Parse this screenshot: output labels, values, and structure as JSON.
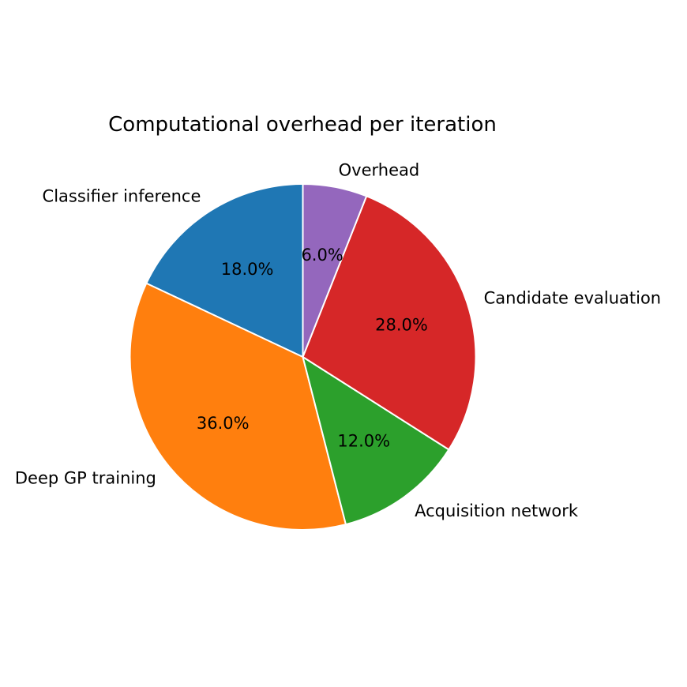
{
  "chart_data": {
    "type": "pie",
    "title": "Computational overhead per iteration",
    "start": "top",
    "direction": "counterclockwise",
    "slices": [
      {
        "label": "Classifier inference",
        "value": 18.0,
        "pct_label": "18.0%",
        "color": "#1f77b4"
      },
      {
        "label": "Deep GP training",
        "value": 36.0,
        "pct_label": "36.0%",
        "color": "#ff7f0e"
      },
      {
        "label": "Acquisition network",
        "value": 12.0,
        "pct_label": "12.0%",
        "color": "#2ca02c"
      },
      {
        "label": "Candidate evaluation",
        "value": 28.0,
        "pct_label": "28.0%",
        "color": "#d62728"
      },
      {
        "label": "Overhead",
        "value": 6.0,
        "pct_label": "6.0%",
        "color": "#9467bd"
      }
    ]
  }
}
